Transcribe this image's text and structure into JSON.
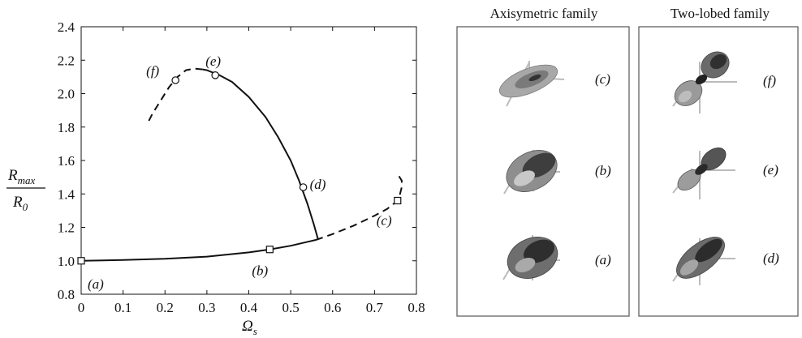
{
  "chart_data": {
    "type": "line",
    "ylabel_num": "R",
    "ylabel_num_sub": "max",
    "ylabel_den": "R",
    "ylabel_den_sub": "0",
    "xlabel": "Ω",
    "xlabel_sub": "s",
    "xlim": [
      0,
      0.8
    ],
    "ylim": [
      0.8,
      2.4
    ],
    "xticks": [
      "0",
      "0.1",
      "0.2",
      "0.3",
      "0.4",
      "0.5",
      "0.6",
      "0.7",
      "0.8"
    ],
    "yticks": [
      "0.8",
      "1.0",
      "1.2",
      "1.4",
      "1.6",
      "1.8",
      "2.0",
      "2.2",
      "2.4"
    ],
    "grid": false,
    "series": [
      {
        "family": "axisymmetric",
        "stable": {
          "x": [
            0,
            0.1,
            0.2,
            0.3,
            0.4,
            0.45,
            0.5,
            0.56
          ],
          "y": [
            1.0,
            1.005,
            1.012,
            1.025,
            1.05,
            1.068,
            1.09,
            1.125
          ]
        },
        "unstable": {
          "x": [
            0.56,
            0.6,
            0.65,
            0.7,
            0.73,
            0.75,
            0.76,
            0.765,
            0.765,
            0.755
          ],
          "y": [
            1.125,
            1.16,
            1.21,
            1.27,
            1.31,
            1.35,
            1.39,
            1.44,
            1.48,
            1.52
          ]
        }
      },
      {
        "family": "two-lobed",
        "stable": {
          "x": [
            0.565,
            0.555,
            0.54,
            0.52,
            0.5,
            0.47,
            0.44,
            0.4,
            0.36,
            0.33,
            0.3,
            0.29
          ],
          "y": [
            1.13,
            1.22,
            1.34,
            1.48,
            1.6,
            1.74,
            1.86,
            1.98,
            2.07,
            2.11,
            2.14,
            2.145
          ]
        },
        "unstable": {
          "x": [
            0.29,
            0.27,
            0.25,
            0.23,
            0.21,
            0.19,
            0.17,
            0.16
          ],
          "y": [
            2.145,
            2.15,
            2.14,
            2.1,
            2.04,
            1.96,
            1.88,
            1.83
          ]
        }
      }
    ],
    "points": [
      {
        "label": "(a)",
        "x": 0.0,
        "y": 1.0,
        "marker": "square"
      },
      {
        "label": "(b)",
        "x": 0.45,
        "y": 1.068,
        "marker": "square"
      },
      {
        "label": "(c)",
        "x": 0.755,
        "y": 1.36,
        "marker": "square"
      },
      {
        "label": "(d)",
        "x": 0.53,
        "y": 1.44,
        "marker": "circle"
      },
      {
        "label": "(e)",
        "x": 0.32,
        "y": 2.11,
        "marker": "circle"
      },
      {
        "label": "(f)",
        "x": 0.225,
        "y": 2.08,
        "marker": "circle"
      }
    ]
  },
  "panels": [
    {
      "title": "Axisymetric family",
      "shapes": [
        {
          "label": "(c)",
          "kind": "flat-disc"
        },
        {
          "label": "(b)",
          "kind": "oblate"
        },
        {
          "label": "(a)",
          "kind": "sphere"
        }
      ]
    },
    {
      "title": "Two-lobed family",
      "shapes": [
        {
          "label": "(f)",
          "kind": "peanut-strong"
        },
        {
          "label": "(e)",
          "kind": "peanut"
        },
        {
          "label": "(d)",
          "kind": "elongated"
        }
      ]
    }
  ],
  "colors": {
    "line": "#111111",
    "marker_fill": "#ffffff",
    "shape_shade": "#555555",
    "axis_cross": "#bbbbbb"
  }
}
